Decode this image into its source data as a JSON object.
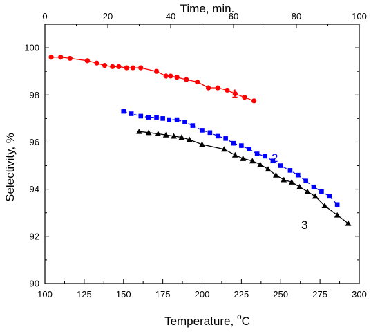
{
  "chart_data": {
    "type": "scatter",
    "xlabel": "Temperature, ",
    "xlabel_sup": "o",
    "xlabel_unit": "C",
    "x2label": "Time, min.",
    "ylabel": "Selectivity, %",
    "xlim": [
      100,
      300
    ],
    "x2lim": [
      0,
      100
    ],
    "ylim": [
      90,
      101
    ],
    "x_ticks": [
      100,
      125,
      150,
      175,
      200,
      225,
      250,
      275,
      300
    ],
    "x2_ticks": [
      0,
      20,
      40,
      60,
      80,
      100
    ],
    "y_ticks": [
      90,
      92,
      94,
      96,
      98,
      100
    ],
    "grid": false,
    "series": [
      {
        "name": "1",
        "color": "#ff0000",
        "marker": "circle",
        "line": "solid",
        "x": [
          104,
          110,
          116,
          127,
          133,
          138,
          143,
          147,
          152,
          156,
          161,
          171,
          177,
          180,
          184,
          190,
          197,
          204,
          210,
          216,
          221,
          227,
          233
        ],
        "y": [
          99.6,
          99.6,
          99.55,
          99.45,
          99.35,
          99.25,
          99.2,
          99.2,
          99.15,
          99.15,
          99.15,
          99.0,
          98.8,
          98.8,
          98.75,
          98.65,
          98.55,
          98.3,
          98.3,
          98.2,
          98.05,
          97.9,
          97.75
        ]
      },
      {
        "name": "2",
        "color": "#0000ff",
        "marker": "square",
        "line": "dash",
        "x": [
          150,
          155,
          161,
          166,
          171,
          175,
          179,
          184,
          189,
          194,
          200,
          205,
          210,
          215,
          220,
          225,
          230,
          235,
          240,
          245,
          250,
          256,
          261,
          266,
          271,
          276,
          281,
          286
        ],
        "y": [
          97.3,
          97.2,
          97.1,
          97.05,
          97.05,
          97.0,
          96.95,
          96.95,
          96.85,
          96.7,
          96.5,
          96.4,
          96.25,
          96.15,
          95.95,
          95.85,
          95.7,
          95.5,
          95.4,
          95.2,
          95.0,
          94.8,
          94.6,
          94.35,
          94.1,
          93.9,
          93.7,
          93.35
        ]
      },
      {
        "name": "3",
        "color": "#000000",
        "marker": "triangle",
        "line": "solid",
        "x": [
          160,
          166,
          172,
          177,
          182,
          187,
          192,
          200,
          214,
          221,
          226,
          232,
          237,
          242,
          247,
          252,
          257,
          262,
          267,
          272,
          278,
          286,
          293
        ],
        "y": [
          96.45,
          96.4,
          96.35,
          96.3,
          96.25,
          96.2,
          96.1,
          95.9,
          95.7,
          95.45,
          95.3,
          95.2,
          95.05,
          94.85,
          94.6,
          94.4,
          94.3,
          94.1,
          93.9,
          93.7,
          93.3,
          92.9,
          92.55
        ]
      }
    ]
  }
}
